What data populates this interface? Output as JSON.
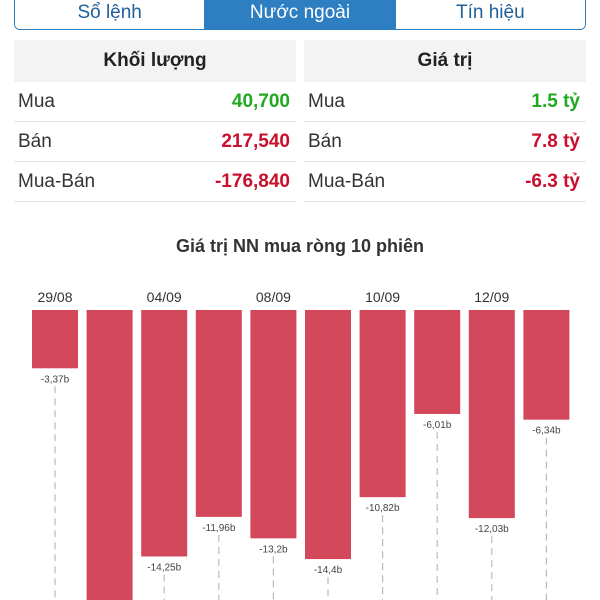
{
  "tabs": [
    {
      "label": "Sổ lệnh",
      "active": false
    },
    {
      "label": "Nước ngoài",
      "active": true
    },
    {
      "label": "Tín hiệu",
      "active": false
    }
  ],
  "volume": {
    "title": "Khối lượng",
    "rows": [
      {
        "label": "Mua",
        "value": "40,700",
        "tone": "green"
      },
      {
        "label": "Bán",
        "value": "217,540",
        "tone": "red"
      },
      {
        "label": "Mua-Bán",
        "value": "-176,840",
        "tone": "red"
      }
    ]
  },
  "value": {
    "title": "Giá trị",
    "rows": [
      {
        "label": "Mua",
        "value": "1.5 tỷ",
        "tone": "green"
      },
      {
        "label": "Bán",
        "value": "7.8 tỷ",
        "tone": "red"
      },
      {
        "label": "Mua-Bán",
        "value": "-6.3 tỷ",
        "tone": "red"
      }
    ]
  },
  "colors": {
    "bar": "#d2475a",
    "green": "#1faa1f",
    "red": "#c8102e",
    "tab_active": "#2d7fc1"
  },
  "chart_data": {
    "type": "bar",
    "title": "Giá trị NN mua ròng 10 phiên",
    "date_labels": [
      "29/08",
      "",
      "04/09",
      "",
      "08/09",
      "",
      "10/09",
      "",
      "12/09",
      ""
    ],
    "values": [
      -3.37,
      -18.5,
      -14.25,
      -11.96,
      -13.2,
      -14.4,
      -10.82,
      -6.01,
      -12.03,
      -6.34
    ],
    "value_labels": [
      "-3,37b",
      "",
      "-14,25b",
      "-11,96b",
      "-13,2b",
      "-14,4b",
      "-10,82b",
      "-6,01b",
      "-12,03b",
      "-6,34b"
    ],
    "ylim": [
      -18.5,
      0
    ],
    "grid": false
  }
}
